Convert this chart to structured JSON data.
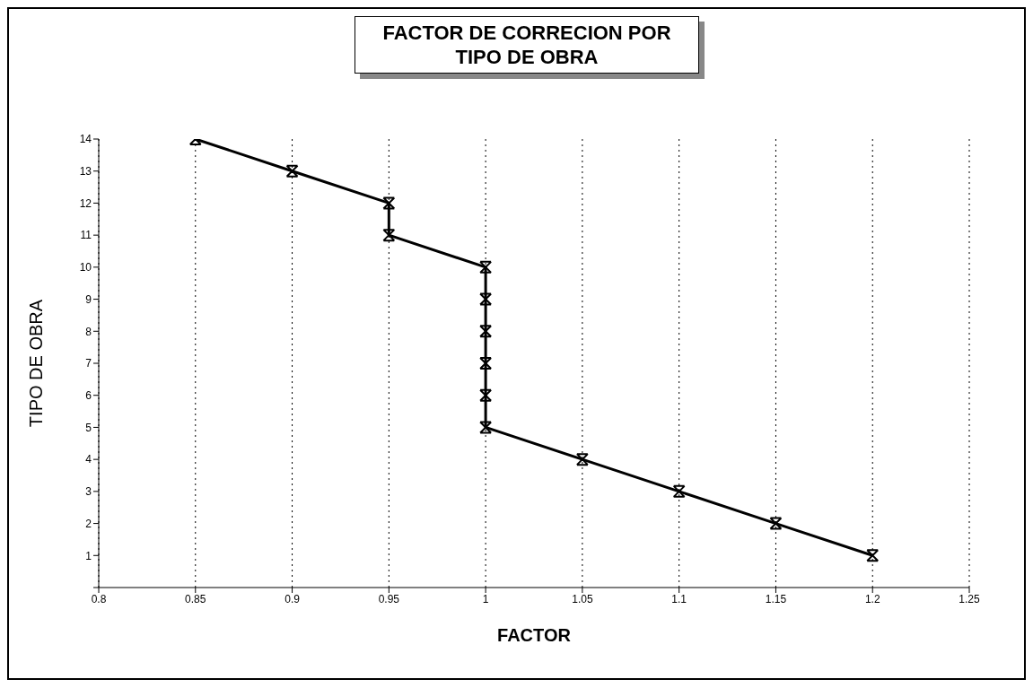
{
  "chart_data": {
    "type": "line",
    "title": "FACTOR DE CORRECION POR TIPO DE OBRA",
    "xlabel": "FACTOR",
    "ylabel": "TIPO DE OBRA",
    "x": [
      0.85,
      0.9,
      0.95,
      0.95,
      1,
      1,
      1,
      1,
      1,
      1,
      1.05,
      1.1,
      1.15,
      1.2
    ],
    "series": [
      {
        "color": "#000000",
        "values": [
          14,
          13,
          12,
          11,
          10,
          9,
          8,
          7,
          6,
          5,
          4,
          3,
          2,
          1
        ]
      }
    ],
    "xlim": [
      0.8,
      1.25
    ],
    "xticks": [
      0.8,
      0.85,
      0.9,
      0.95,
      1,
      1.05,
      1.1,
      1.15,
      1.2,
      1.25
    ],
    "ylim": [
      0,
      14
    ],
    "yticks": [
      {
        "value": 0,
        "label": null
      },
      1,
      2,
      3,
      4,
      5,
      6,
      7,
      8,
      9,
      10,
      11,
      12,
      13,
      14
    ],
    "grid": "x",
    "marker": "cross",
    "line_style": "solid"
  }
}
